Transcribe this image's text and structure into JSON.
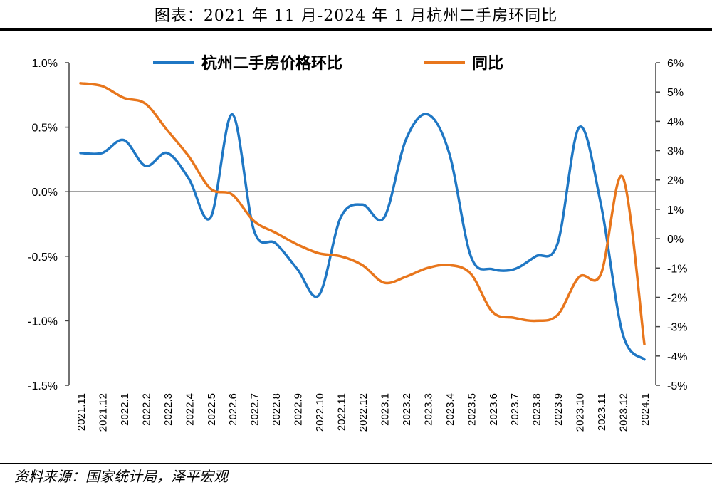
{
  "title": "图表：2021 年 11 月-2024 年 1 月杭州二手房环同比",
  "source": "资料来源：国家统计局，泽平宏观",
  "colors": {
    "mom": "#1f77c4",
    "yoy": "#e8761c",
    "axis": "#444444"
  },
  "chart_data": {
    "type": "line",
    "categories": [
      "2021.11",
      "2021.12",
      "2022.1",
      "2022.2",
      "2022.3",
      "2022.4",
      "2022.5",
      "2022.6",
      "2022.7",
      "2022.8",
      "2022.9",
      "2022.10",
      "2022.11",
      "2022.12",
      "2023.1",
      "2023.2",
      "2023.3",
      "2023.4",
      "2023.5",
      "2023.6",
      "2023.7",
      "2023.8",
      "2023.9",
      "2023.10",
      "2023.11",
      "2023.12",
      "2024.1"
    ],
    "series": [
      {
        "name": "杭州二手房价格环比",
        "axis": "left",
        "values": [
          0.3,
          0.3,
          0.4,
          0.2,
          0.3,
          0.1,
          -0.2,
          0.6,
          -0.3,
          -0.4,
          -0.6,
          -0.8,
          -0.2,
          -0.1,
          -0.2,
          0.4,
          0.6,
          0.3,
          -0.5,
          -0.6,
          -0.6,
          -0.5,
          -0.4,
          0.5,
          -0.1,
          -1.1,
          -1.3
        ]
      },
      {
        "name": "同比",
        "axis": "right",
        "values": [
          5.3,
          5.2,
          4.8,
          4.6,
          3.7,
          2.8,
          1.7,
          1.5,
          0.6,
          0.2,
          -0.2,
          -0.5,
          -0.6,
          -0.9,
          -1.5,
          -1.3,
          -1.0,
          -0.9,
          -1.2,
          -2.5,
          -2.7,
          -2.8,
          -2.6,
          -1.3,
          -1.2,
          2.1,
          -3.6
        ]
      }
    ],
    "left_axis": {
      "ticks": [
        "1.0%",
        "0.5%",
        "0.0%",
        "-0.5%",
        "-1.0%",
        "-1.5%"
      ],
      "ylim": [
        -1.5,
        1.0
      ]
    },
    "right_axis": {
      "ticks": [
        "6%",
        "5%",
        "4%",
        "3%",
        "2%",
        "1%",
        "0%",
        "-1%",
        "-2%",
        "-3%",
        "-4%",
        "-5%"
      ],
      "ylim": [
        -5,
        6
      ]
    },
    "legend_position": "top",
    "zero_line": true
  }
}
